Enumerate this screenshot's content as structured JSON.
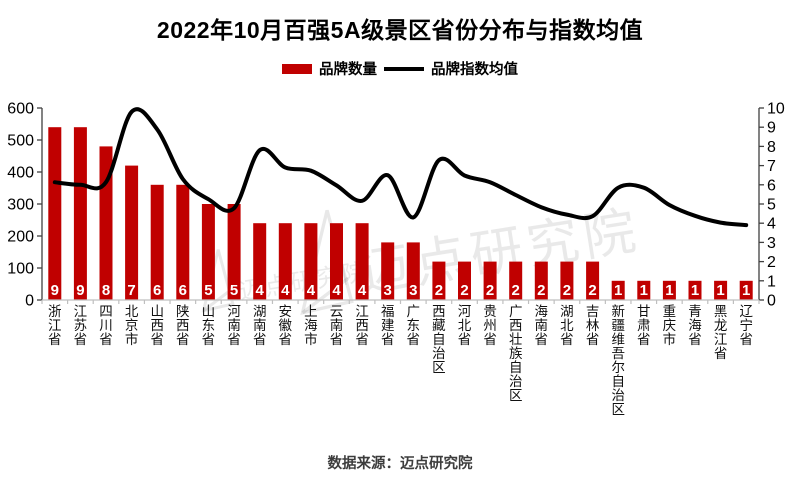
{
  "title": "2022年10月百强5A级景区省份分布与指数均值",
  "legend": {
    "items": [
      {
        "label": "品牌数量",
        "type": "bar"
      },
      {
        "label": "品牌指数均值",
        "type": "line"
      }
    ]
  },
  "footer": {
    "source_label": "数据来源：迈点研究院"
  },
  "watermark": {
    "text": "迈点研究院"
  },
  "colors": {
    "bar": "#C00000",
    "line": "#000000",
    "axis": "#404040",
    "baseline": "#BFBFBF",
    "bar_label": "#FFFFFF",
    "title": "#000000"
  },
  "chart_data": {
    "type": "bar+line combo",
    "title": "2022年10月百强5A级景区省份分布与指数均值",
    "categories": [
      "浙江省",
      "江苏省",
      "四川省",
      "北京市",
      "山西省",
      "陕西省",
      "山东省",
      "河南省",
      "湖南省",
      "安徽省",
      "上海市",
      "云南省",
      "江西省",
      "福建省",
      "广东省",
      "西藏自治区",
      "河北省",
      "贵州省",
      "广西壮族自治区",
      "海南省",
      "湖北省",
      "吉林省",
      "新疆维吾尔自治区",
      "甘肃省",
      "重庆市",
      "青海省",
      "黑龙江省",
      "辽宁省"
    ],
    "series": [
      {
        "name": "品牌数量",
        "type": "bar",
        "axis": "right",
        "color": "#C00000",
        "values": [
          9,
          9,
          8,
          7,
          6,
          6,
          5,
          5,
          4,
          4,
          4,
          4,
          4,
          3,
          3,
          2,
          2,
          2,
          2,
          2,
          2,
          2,
          1,
          1,
          1,
          1,
          1,
          1
        ]
      },
      {
        "name": "品牌指数均值",
        "type": "line",
        "axis": "left",
        "color": "#000000",
        "values": [
          368,
          360,
          368,
          588,
          533,
          378,
          315,
          287,
          468,
          414,
          404,
          358,
          310,
          390,
          258,
          437,
          389,
          368,
          328,
          290,
          267,
          262,
          351,
          351,
          297,
          263,
          242,
          234
        ]
      }
    ],
    "left_axis": {
      "min": 0,
      "max": 600,
      "step": 100,
      "ticks": [
        0,
        100,
        200,
        300,
        400,
        500,
        600
      ]
    },
    "right_axis": {
      "min": 0,
      "max": 10,
      "step": 1,
      "ticks": [
        0,
        1,
        2,
        3,
        4,
        5,
        6,
        7,
        8,
        9,
        10
      ]
    },
    "grid": false,
    "legend_position": "top",
    "bar_labels_shown": true
  }
}
